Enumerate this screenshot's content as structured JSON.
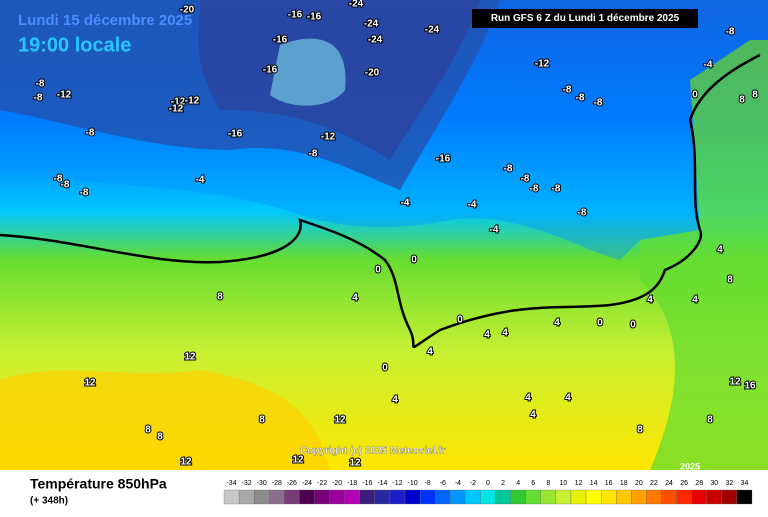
{
  "header": {
    "date": "Lundi 15 décembre 2025",
    "time": "19:00 locale",
    "run": "Run GFS 6 Z du Lundi 1 décembre 2025",
    "copyright": "Copyright (c) 2025 Meteociel.fr",
    "year": "2025"
  },
  "footer": {
    "title": "Température 850hPa",
    "lead": "(+ 348h)"
  },
  "legend": {
    "ticks": [
      -34,
      -32,
      -30,
      -28,
      -26,
      -24,
      -22,
      -20,
      -18,
      -16,
      -14,
      -12,
      -10,
      -8,
      -6,
      -4,
      -2,
      0,
      2,
      4,
      6,
      8,
      10,
      12,
      14,
      16,
      18,
      20,
      22,
      24,
      26,
      28,
      30,
      32,
      34
    ],
    "colors": [
      "#c8c8c8",
      "#a8a8a8",
      "#8c8c8c",
      "#8c6e8c",
      "#783c78",
      "#500050",
      "#780078",
      "#9b009b",
      "#b400b4",
      "#3c1e78",
      "#2828a0",
      "#1e1ec8",
      "#0000c8",
      "#0032ff",
      "#0064ff",
      "#0096ff",
      "#00c8ff",
      "#00e6e6",
      "#00c896",
      "#32c832",
      "#64dc32",
      "#96e632",
      "#c8f032",
      "#e6f000",
      "#ffff00",
      "#ffe600",
      "#ffc800",
      "#ffa000",
      "#ff7800",
      "#ff5000",
      "#ff2800",
      "#e60000",
      "#c80000",
      "#a00000",
      "#000000"
    ]
  },
  "map_labels": [
    -20,
    -16,
    -16,
    -24,
    -16,
    -24,
    -24,
    -24,
    -16,
    -20,
    -12,
    -8,
    -8,
    -12,
    -12,
    -12,
    -12,
    -16,
    -12,
    -8,
    -8,
    -16,
    -8,
    -8,
    -8,
    -8,
    -8,
    -8,
    -8,
    -8,
    -4,
    -4,
    -4,
    -4,
    -8,
    -8,
    -8,
    -8,
    -4,
    0,
    8,
    8,
    0,
    0,
    4,
    8,
    12,
    12,
    8,
    8,
    8,
    12,
    12,
    12,
    12,
    4,
    4,
    0,
    4,
    4,
    4,
    0,
    0,
    4,
    4,
    12,
    16,
    4,
    4,
    4,
    8,
    8,
    0,
    4,
    8
  ]
}
